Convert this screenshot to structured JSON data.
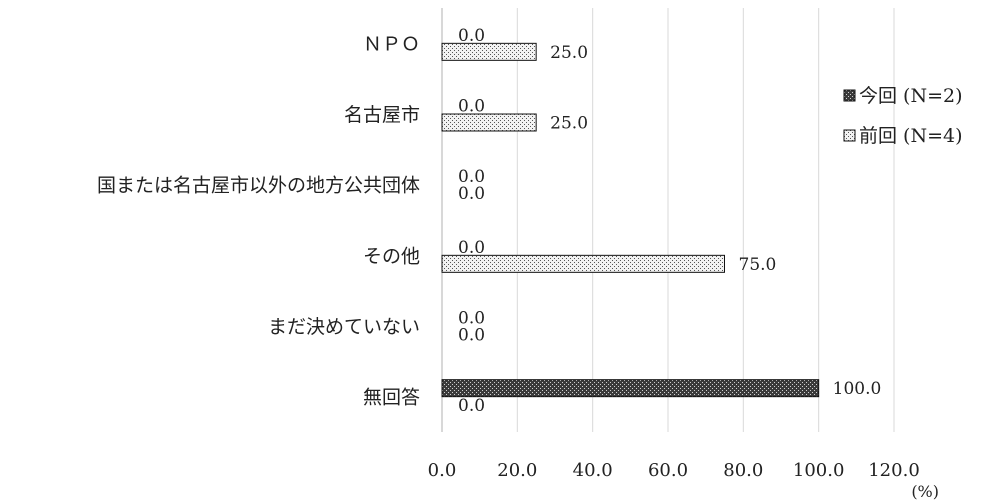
{
  "chart_data": {
    "type": "bar",
    "orientation": "horizontal",
    "title": "",
    "xlabel": "",
    "ylabel": "",
    "unit": "(%)",
    "categories": [
      "ＮＰＯ",
      "名古屋市",
      "国または名古屋市以外の地方公共団体",
      "その他",
      "まだ決めていない",
      "無回答"
    ],
    "series": [
      {
        "name": "今回 (N=2)",
        "values": [
          0.0,
          0.0,
          0.0,
          0.0,
          0.0,
          100.0
        ],
        "labels": [
          "0.0",
          "0.0",
          "0.0",
          "0.0",
          "0.0",
          "100.0"
        ],
        "color": "#555555"
      },
      {
        "name": "前回 (N=4)",
        "values": [
          25.0,
          25.0,
          0.0,
          75.0,
          0.0,
          0.0
        ],
        "labels": [
          "25.0",
          "25.0",
          "0.0",
          "75.0",
          "0.0",
          "0.0"
        ],
        "color": "#e6e6e6"
      }
    ],
    "xlim": [
      0,
      120
    ],
    "xticks": [
      0,
      20,
      40,
      60,
      80,
      100,
      120
    ],
    "xtick_labels": [
      "0.0",
      "20.0",
      "40.0",
      "60.0",
      "80.0",
      "100.0",
      "120.0"
    ],
    "grid": true,
    "legend_position": "right"
  }
}
